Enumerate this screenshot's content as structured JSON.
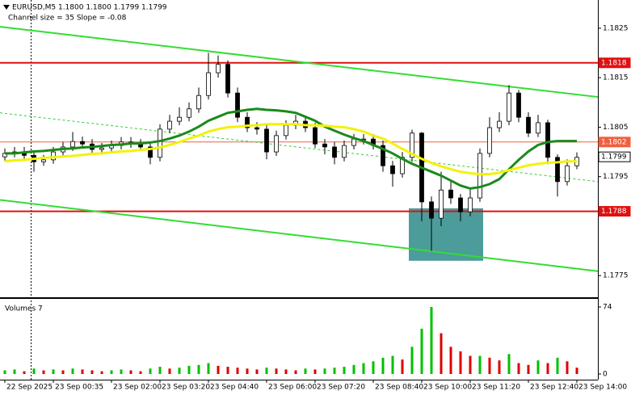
{
  "chart_data": {
    "type": "candlestick",
    "title": "EURUSD,M5  1.1800 1.1800 1.1799 1.1799",
    "subtitle": "Channel size = 35 Slope = -0.08",
    "volume_title": "Volumes 7",
    "categories": [
      "22 Sep 2025",
      null,
      null,
      null,
      null,
      "23 Sep 00:35",
      null,
      null,
      null,
      null,
      null,
      "23 Sep 02:00",
      null,
      null,
      null,
      null,
      "23 Sep 03:20",
      null,
      null,
      null,
      null,
      "23 Sep 04:40",
      null,
      null,
      null,
      null,
      null,
      "23 Sep 06:00",
      null,
      null,
      null,
      null,
      "23 Sep 07:20",
      null,
      null,
      null,
      null,
      null,
      "23 Sep 08:40",
      null,
      null,
      null,
      null,
      "23 Sep 10:00",
      null,
      null,
      null,
      null,
      "23 Sep 11:20",
      null,
      null,
      null,
      null,
      null,
      "23 Sep 12:40",
      null,
      null,
      null,
      null,
      "23 Sep 14:00"
    ],
    "open": [
      1.1799,
      1.17997,
      1.18,
      1.17993,
      1.1798,
      1.17984,
      1.18,
      1.1801,
      1.18021,
      1.18016,
      1.18005,
      1.18008,
      1.18013,
      1.1802,
      1.18016,
      1.1801,
      1.17989,
      1.18046,
      1.18062,
      1.1807,
      1.18087,
      1.18114,
      1.1816,
      1.18177,
      1.18119,
      1.1807,
      1.18049,
      1.18046,
      1.18,
      1.18033,
      1.18054,
      1.18062,
      1.18049,
      1.18016,
      1.1801,
      1.17989,
      1.18013,
      1.18026,
      1.18026,
      1.18013,
      1.17972,
      1.17956,
      1.17989,
      1.18038,
      1.17899,
      1.17866,
      1.17923,
      1.17907,
      1.17879,
      1.17907,
      1.17997,
      1.18049,
      1.18062,
      1.18119,
      1.1807,
      1.18038,
      1.18059,
      1.17989,
      1.1794,
      1.17972
    ],
    "high": [
      1.18007,
      1.1801,
      1.1801,
      1.18003,
      1.17994,
      1.1801,
      1.1802,
      1.1804,
      1.18031,
      1.18026,
      1.18018,
      1.18023,
      1.1803,
      1.1803,
      1.18026,
      1.1802,
      1.18056,
      1.18075,
      1.1809,
      1.181,
      1.1813,
      1.182,
      1.18195,
      1.18185,
      1.1813,
      1.1808,
      1.1806,
      1.18055,
      1.18043,
      1.18064,
      1.18075,
      1.18072,
      1.18059,
      1.18026,
      1.1802,
      1.18023,
      1.18036,
      1.18036,
      1.18036,
      1.18023,
      1.17982,
      1.18,
      1.18045,
      1.1804,
      1.1791,
      1.1796,
      1.1794,
      1.17915,
      1.17925,
      1.18007,
      1.1807,
      1.1808,
      1.18135,
      1.18125,
      1.1808,
      1.18075,
      1.18065,
      1.17995,
      1.17985,
      1.17999
    ],
    "low": [
      1.17982,
      1.17989,
      1.17985,
      1.1796,
      1.17972,
      1.17976,
      1.17992,
      1.18002,
      1.18008,
      1.17997,
      1.17997,
      1.18,
      1.18005,
      1.18008,
      1.18002,
      1.17975,
      1.17981,
      1.18038,
      1.18054,
      1.18062,
      1.18079,
      1.18106,
      1.1815,
      1.1811,
      1.1806,
      1.1804,
      1.18035,
      1.17985,
      1.17992,
      1.18025,
      1.18046,
      1.1804,
      1.18008,
      1.17995,
      1.17975,
      1.17981,
      1.18005,
      1.18015,
      1.18005,
      1.1796,
      1.1793,
      1.17948,
      1.1798,
      1.1786,
      1.178,
      1.1785,
      1.17895,
      1.1786,
      1.1787,
      1.17899,
      1.17989,
      1.1804,
      1.18054,
      1.1806,
      1.1803,
      1.1803,
      1.17975,
      1.1791,
      1.17932,
      1.17965
    ],
    "close": [
      1.17997,
      1.18,
      1.17993,
      1.1798,
      1.17984,
      1.18,
      1.1801,
      1.18021,
      1.18016,
      1.18005,
      1.18008,
      1.18013,
      1.1802,
      1.18016,
      1.1801,
      1.17989,
      1.18046,
      1.18062,
      1.1807,
      1.18087,
      1.18114,
      1.1816,
      1.18177,
      1.18119,
      1.1807,
      1.18049,
      1.18046,
      1.18,
      1.18033,
      1.18054,
      1.18062,
      1.18049,
      1.18016,
      1.1801,
      1.17989,
      1.18013,
      1.18026,
      1.18026,
      1.18013,
      1.17972,
      1.17956,
      1.17989,
      1.18038,
      1.17899,
      1.17866,
      1.17923,
      1.17907,
      1.17879,
      1.17907,
      1.17997,
      1.18049,
      1.18062,
      1.18119,
      1.1807,
      1.18038,
      1.18059,
      1.17989,
      1.1794,
      1.17972,
      1.17989
    ],
    "volume": [
      4,
      5,
      3,
      6,
      4,
      5,
      4,
      6,
      5,
      4,
      3,
      4,
      5,
      4,
      3,
      6,
      8,
      6,
      7,
      9,
      10,
      12,
      9,
      8,
      7,
      6,
      5,
      7,
      6,
      5,
      4,
      6,
      5,
      6,
      7,
      8,
      10,
      12,
      14,
      18,
      20,
      16,
      30,
      50,
      74,
      45,
      30,
      25,
      20,
      20,
      18,
      15,
      22,
      12,
      10,
      15,
      12,
      18,
      14,
      7
    ],
    "series": [
      {
        "color": "#1a8a1a",
        "values": [
          1.17997,
          1.17997,
          1.17999,
          1.18001,
          1.18002,
          1.18004,
          1.18006,
          1.18007,
          1.18009,
          1.1801,
          1.18012,
          1.18014,
          1.18015,
          1.18017,
          1.18017,
          1.18019,
          1.18022,
          1.18027,
          1.18033,
          1.18041,
          1.18051,
          1.18063,
          1.18071,
          1.18079,
          1.18082,
          1.18085,
          1.18087,
          1.18085,
          1.18084,
          1.18082,
          1.18079,
          1.18071,
          1.18063,
          1.18051,
          1.18043,
          1.18035,
          1.18028,
          1.18022,
          1.18014,
          1.18006,
          1.17997,
          1.17986,
          1.17976,
          1.17968,
          1.1796,
          1.17952,
          1.17942,
          1.17932,
          1.17926,
          1.17929,
          1.17935,
          1.17945,
          1.17965,
          1.17984,
          1.18001,
          1.18014,
          1.1802,
          1.18022,
          1.18022,
          1.18022
        ]
      },
      {
        "color": "#f2f20a",
        "values": [
          1.17981,
          1.17983,
          1.17984,
          1.17986,
          1.17988,
          1.17989,
          1.17991,
          1.17992,
          1.17994,
          1.17996,
          1.17997,
          1.17999,
          1.18001,
          1.18002,
          1.18004,
          1.18006,
          1.18009,
          1.18014,
          1.1802,
          1.18027,
          1.18033,
          1.18041,
          1.18046,
          1.1805,
          1.18051,
          1.18053,
          1.18054,
          1.18056,
          1.18056,
          1.18056,
          1.18056,
          1.18054,
          1.18054,
          1.18053,
          1.18051,
          1.1805,
          1.18046,
          1.18041,
          1.18033,
          1.18027,
          1.18017,
          1.18006,
          1.17996,
          1.17986,
          1.17978,
          1.17971,
          1.17965,
          1.1796,
          1.17957,
          1.17955,
          1.17955,
          1.17958,
          1.17963,
          1.17968,
          1.17973,
          1.17976,
          1.17978,
          1.17979,
          1.17981,
          1.17981
        ]
      }
    ],
    "channel": [
      {
        "color": "#33dd33",
        "left": 1.18253,
        "right": 1.18111
      },
      {
        "color": "#33dd33",
        "left": 1.17903,
        "right": 1.17759
      }
    ],
    "trend": {
      "color": "#33cc33",
      "left": 1.18079,
      "right": 1.1794
    },
    "levels": [
      {
        "value": 1.1818,
        "color": "#e01010"
      },
      {
        "value": 1.1802,
        "color": "#f06040"
      },
      {
        "value": 1.1788,
        "color": "#e01010"
      }
    ],
    "last_price": 1.1799,
    "zone": {
      "start": 42,
      "end": 49,
      "top": 1.17886,
      "bottom": 1.1778,
      "color": "#2e8b8b"
    },
    "ylim": [
      1.17703,
      1.18307
    ],
    "yticks": [
      1.1825,
      1.1815,
      1.1805,
      1.1795,
      1.1775
    ],
    "vlim": [
      0,
      74
    ],
    "vticks": [
      0,
      74
    ],
    "up_color": "#ffffff",
    "down_color": "#000000",
    "volume_up_color": "#00c000",
    "volume_down_color": "#e00000"
  }
}
